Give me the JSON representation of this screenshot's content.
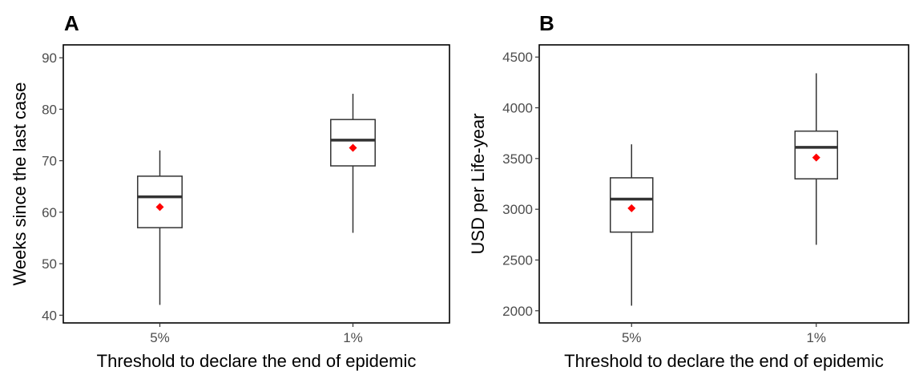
{
  "chart_data": [
    {
      "type": "box",
      "panel_label": "A",
      "xlabel": "Threshold to declare the end of epidemic",
      "ylabel": "Weeks since the last case",
      "categories": [
        "5%",
        "1%"
      ],
      "boxes": [
        {
          "category": "5%",
          "whisker_low": 42,
          "q1": 57,
          "median": 63,
          "q3": 67,
          "whisker_high": 72,
          "mean": 61
        },
        {
          "category": "1%",
          "whisker_low": 56,
          "q1": 69,
          "median": 74,
          "q3": 78,
          "whisker_high": 83,
          "mean": 72.5
        }
      ],
      "ylim": [
        38.5,
        92.5
      ],
      "yticks": [
        40,
        50,
        60,
        70,
        80,
        90
      ],
      "ytick_labels": [
        "40",
        "50",
        "60",
        "70",
        "80",
        "90"
      ],
      "mean_marker_color": "#ff0000",
      "grid": false
    },
    {
      "type": "box",
      "panel_label": "B",
      "xlabel": "Threshold to declare the end of epidemic",
      "ylabel": "USD per Life-year",
      "categories": [
        "5%",
        "1%"
      ],
      "boxes": [
        {
          "category": "5%",
          "whisker_low": 2050,
          "q1": 2775,
          "median": 3100,
          "q3": 3310,
          "whisker_high": 3640,
          "mean": 3010
        },
        {
          "category": "1%",
          "whisker_low": 2650,
          "q1": 3300,
          "median": 3610,
          "q3": 3770,
          "whisker_high": 4340,
          "mean": 3510
        }
      ],
      "ylim": [
        1880,
        4620
      ],
      "yticks": [
        2000,
        2500,
        3000,
        3500,
        4000,
        4500
      ],
      "ytick_labels": [
        "2000",
        "2500",
        "3000",
        "3500",
        "4000",
        "4500"
      ],
      "mean_marker_color": "#ff0000",
      "grid": false
    }
  ]
}
